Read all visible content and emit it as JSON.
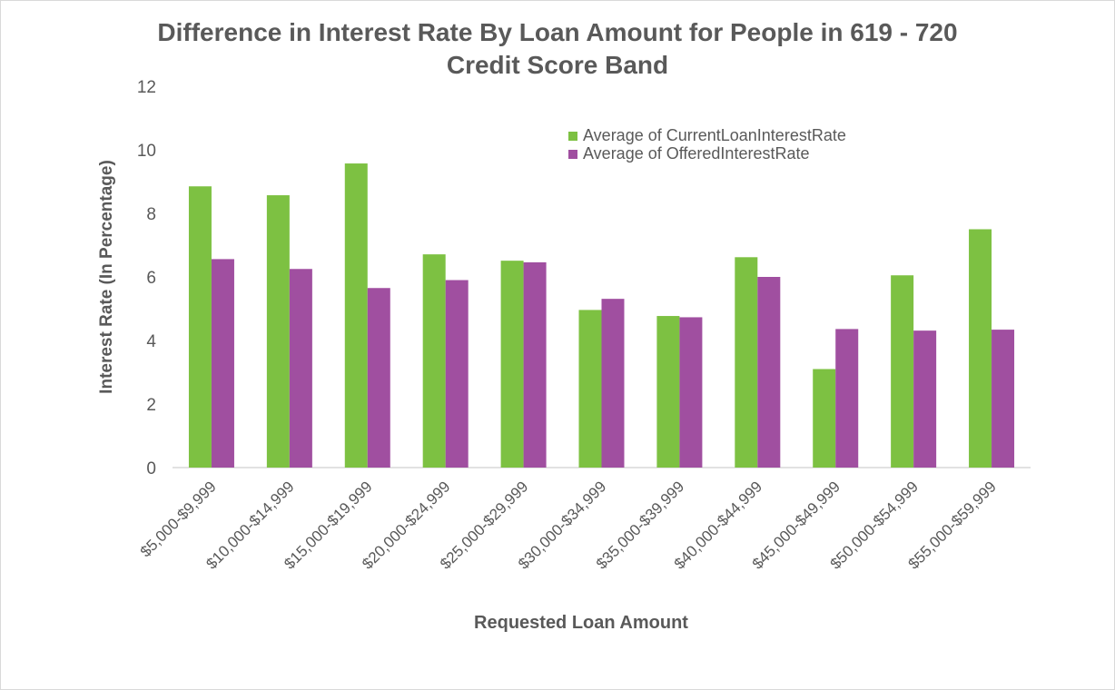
{
  "chart_data": {
    "type": "bar",
    "title_line1": "Difference in Interest Rate By Loan Amount for People in 619 - 720",
    "title_line2": "Credit Score Band",
    "xlabel": "Requested Loan Amount",
    "ylabel": "Interest Rate (In Percentage)",
    "ylim": [
      0,
      12
    ],
    "yticks": [
      0,
      2,
      4,
      6,
      8,
      10,
      12
    ],
    "grid": false,
    "legend_position": "top-right",
    "categories": [
      "$5,000-$9,999",
      "$10,000-$14,999",
      "$15,000-$19,999",
      "$20,000-$24,999",
      "$25,000-$29,999",
      "$30,000-$34,999",
      "$35,000-$39,999",
      "$40,000-$44,999",
      "$45,000-$49,999",
      "$50,000-$54,999",
      "$55,000-$59,999"
    ],
    "series": [
      {
        "name": "Average of CurrentLoanInterestRate",
        "color": "#7DC142",
        "values": [
          8.85,
          8.57,
          9.57,
          6.71,
          6.51,
          4.96,
          4.77,
          6.62,
          3.1,
          6.05,
          7.5
        ]
      },
      {
        "name": "Average of OfferedInterestRate",
        "color": "#A04FA0",
        "values": [
          6.56,
          6.25,
          5.65,
          5.9,
          6.46,
          5.31,
          4.73,
          6.0,
          4.36,
          4.31,
          4.34
        ]
      }
    ]
  }
}
